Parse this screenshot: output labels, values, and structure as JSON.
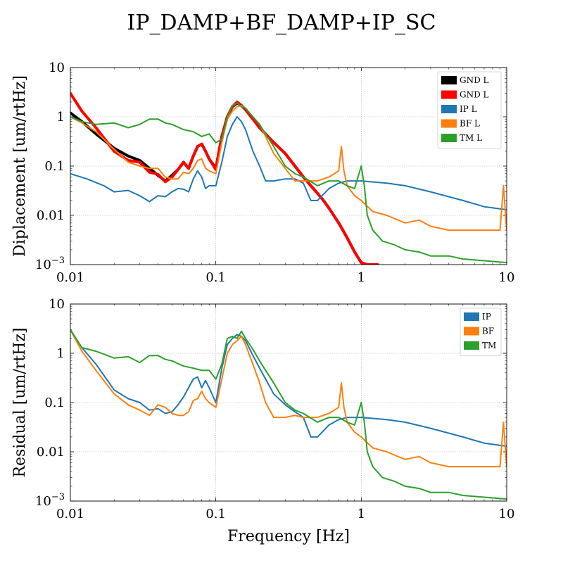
{
  "title": "IP_DAMP+BF_DAMP+IP_SC",
  "colors": {
    "black": "#000000",
    "red": "#ff0000",
    "blue": "#1f77b4",
    "orange": "#ff7f0e",
    "green": "#2ca02c"
  },
  "chart_data": [
    {
      "type": "line",
      "xscale": "log",
      "yscale": "log",
      "xlim": [
        0.01,
        10
      ],
      "ylim": [
        0.001,
        10
      ],
      "xlabel": "",
      "ylabel": "Diplacement [um/rtHz]",
      "x_ticks": [
        "0.01",
        "0.1",
        "1",
        "10"
      ],
      "y_ticks": [
        "10^{-3}",
        "0.01",
        "0.1",
        "1",
        "10"
      ],
      "grid": true,
      "legend_position": "top-right",
      "series": [
        {
          "name": "GND L",
          "color": "#000000",
          "width": 4,
          "x": [
            0.01,
            0.012,
            0.015,
            0.02,
            0.025,
            0.03,
            0.035,
            0.04,
            0.045,
            0.05,
            0.055,
            0.06,
            0.065,
            0.07,
            0.075,
            0.08,
            0.085,
            0.09,
            0.1,
            0.11,
            0.12,
            0.13,
            0.14,
            0.15,
            0.16,
            0.18,
            0.2,
            0.25,
            0.3,
            0.35,
            0.4,
            0.45,
            0.5,
            0.55,
            0.6,
            0.7,
            0.8,
            0.9,
            1.0,
            1.1
          ],
          "y": [
            1.2,
            0.8,
            0.45,
            0.23,
            0.16,
            0.13,
            0.09,
            0.065,
            0.05,
            0.065,
            0.085,
            0.12,
            0.09,
            0.16,
            0.25,
            0.28,
            0.2,
            0.14,
            0.09,
            0.4,
            1.0,
            1.6,
            1.9,
            1.7,
            1.4,
            0.9,
            0.6,
            0.3,
            0.18,
            0.1,
            0.06,
            0.04,
            0.028,
            0.02,
            0.014,
            0.007,
            0.0035,
            0.0018,
            0.0011,
            0.001
          ]
        },
        {
          "name": "GND L",
          "color": "#ff0000",
          "width": 4,
          "x": [
            0.01,
            0.012,
            0.015,
            0.02,
            0.025,
            0.03,
            0.035,
            0.04,
            0.045,
            0.05,
            0.055,
            0.06,
            0.065,
            0.07,
            0.075,
            0.08,
            0.085,
            0.09,
            0.1,
            0.11,
            0.12,
            0.13,
            0.14,
            0.15,
            0.16,
            0.18,
            0.2,
            0.25,
            0.3,
            0.35,
            0.4,
            0.45,
            0.5,
            0.55,
            0.6,
            0.7,
            0.8,
            0.9,
            1.0,
            1.1,
            1.3
          ],
          "y": [
            3.0,
            1.3,
            0.6,
            0.2,
            0.13,
            0.12,
            0.075,
            0.068,
            0.048,
            0.06,
            0.085,
            0.12,
            0.09,
            0.16,
            0.25,
            0.28,
            0.2,
            0.14,
            0.085,
            0.4,
            1.0,
            1.6,
            2.0,
            1.7,
            1.4,
            0.9,
            0.6,
            0.3,
            0.18,
            0.1,
            0.06,
            0.04,
            0.028,
            0.02,
            0.014,
            0.007,
            0.0035,
            0.0018,
            0.0011,
            0.001,
            0.001
          ]
        },
        {
          "name": "IP L",
          "color": "#1f77b4",
          "width": 2,
          "x": [
            0.01,
            0.013,
            0.017,
            0.02,
            0.025,
            0.03,
            0.035,
            0.04,
            0.045,
            0.05,
            0.055,
            0.06,
            0.065,
            0.07,
            0.075,
            0.08,
            0.085,
            0.09,
            0.1,
            0.11,
            0.12,
            0.13,
            0.14,
            0.15,
            0.16,
            0.18,
            0.2,
            0.22,
            0.25,
            0.3,
            0.35,
            0.4,
            0.45,
            0.5,
            0.6,
            0.7,
            0.8,
            1.0,
            1.5,
            2.0,
            3.0,
            5.0,
            7.0,
            10.0
          ],
          "y": [
            0.07,
            0.055,
            0.04,
            0.03,
            0.032,
            0.025,
            0.019,
            0.025,
            0.024,
            0.03,
            0.035,
            0.034,
            0.03,
            0.055,
            0.08,
            0.06,
            0.035,
            0.04,
            0.04,
            0.12,
            0.4,
            0.7,
            1.0,
            0.8,
            0.55,
            0.2,
            0.1,
            0.05,
            0.05,
            0.055,
            0.055,
            0.045,
            0.02,
            0.02,
            0.035,
            0.045,
            0.05,
            0.05,
            0.045,
            0.04,
            0.03,
            0.02,
            0.015,
            0.013
          ]
        },
        {
          "name": "BF L",
          "color": "#ff7f0e",
          "width": 2,
          "x": [
            0.01,
            0.012,
            0.015,
            0.02,
            0.025,
            0.03,
            0.035,
            0.04,
            0.045,
            0.05,
            0.055,
            0.06,
            0.065,
            0.07,
            0.075,
            0.08,
            0.085,
            0.09,
            0.1,
            0.11,
            0.12,
            0.13,
            0.14,
            0.15,
            0.16,
            0.18,
            0.2,
            0.22,
            0.25,
            0.3,
            0.35,
            0.4,
            0.5,
            0.6,
            0.7,
            0.73,
            0.76,
            0.8,
            0.9,
            1.0,
            1.2,
            1.5,
            2.0,
            2.5,
            3.0,
            4.0,
            5.0,
            7.0,
            9.0,
            9.5,
            10.0
          ],
          "y": [
            1.0,
            0.75,
            0.5,
            0.22,
            0.12,
            0.1,
            0.09,
            0.09,
            0.06,
            0.055,
            0.055,
            0.075,
            0.07,
            0.09,
            0.13,
            0.14,
            0.09,
            0.08,
            0.07,
            0.3,
            0.9,
            1.3,
            1.6,
            1.7,
            1.5,
            1.0,
            0.7,
            0.4,
            0.18,
            0.09,
            0.05,
            0.05,
            0.05,
            0.06,
            0.08,
            0.25,
            0.08,
            0.04,
            0.025,
            0.02,
            0.012,
            0.01,
            0.007,
            0.008,
            0.006,
            0.005,
            0.005,
            0.005,
            0.005,
            0.04,
            0.005
          ]
        },
        {
          "name": "TM L",
          "color": "#2ca02c",
          "width": 2,
          "x": [
            0.01,
            0.012,
            0.015,
            0.02,
            0.025,
            0.03,
            0.035,
            0.04,
            0.045,
            0.05,
            0.06,
            0.07,
            0.08,
            0.09,
            0.1,
            0.11,
            0.12,
            0.13,
            0.14,
            0.15,
            0.16,
            0.18,
            0.2,
            0.22,
            0.25,
            0.3,
            0.35,
            0.4,
            0.5,
            0.6,
            0.7,
            0.8,
            0.9,
            1.0,
            1.05,
            1.1,
            1.2,
            1.4,
            1.7,
            2.0,
            2.5,
            3.0,
            4.0,
            5.0,
            7.0,
            10.0
          ],
          "y": [
            1.0,
            0.8,
            0.7,
            0.75,
            0.6,
            0.7,
            0.9,
            0.9,
            0.75,
            0.7,
            0.55,
            0.5,
            0.4,
            0.45,
            0.3,
            0.35,
            1.0,
            1.7,
            1.9,
            1.6,
            1.5,
            1.0,
            0.7,
            0.45,
            0.25,
            0.1,
            0.07,
            0.06,
            0.04,
            0.05,
            0.05,
            0.04,
            0.035,
            0.1,
            0.04,
            0.01,
            0.005,
            0.003,
            0.0025,
            0.002,
            0.0018,
            0.0015,
            0.0015,
            0.0013,
            0.0012,
            0.0011
          ]
        }
      ]
    },
    {
      "type": "line",
      "xscale": "log",
      "yscale": "log",
      "xlim": [
        0.01,
        10
      ],
      "ylim": [
        0.001,
        10
      ],
      "xlabel": "Frequency [Hz]",
      "ylabel": "Residual [um/rtHz]",
      "x_ticks": [
        "0.01",
        "0.1",
        "1",
        "10"
      ],
      "y_ticks": [
        "10^{-3}",
        "0.01",
        "0.1",
        "1",
        "10"
      ],
      "grid": true,
      "legend_position": "top-right",
      "series": [
        {
          "name": "IP",
          "color": "#1f77b4",
          "width": 2,
          "x": [
            0.01,
            0.012,
            0.015,
            0.02,
            0.025,
            0.03,
            0.035,
            0.04,
            0.045,
            0.05,
            0.055,
            0.06,
            0.065,
            0.07,
            0.075,
            0.08,
            0.085,
            0.09,
            0.1,
            0.11,
            0.12,
            0.13,
            0.14,
            0.15,
            0.16,
            0.18,
            0.2,
            0.22,
            0.25,
            0.3,
            0.35,
            0.4,
            0.45,
            0.5,
            0.6,
            0.7,
            0.8,
            1.0,
            1.5,
            2.0,
            3.0,
            5.0,
            7.0,
            10.0
          ],
          "y": [
            3.0,
            1.3,
            0.6,
            0.18,
            0.12,
            0.1,
            0.07,
            0.075,
            0.06,
            0.065,
            0.09,
            0.13,
            0.2,
            0.3,
            0.33,
            0.2,
            0.28,
            0.2,
            0.1,
            0.5,
            1.5,
            2.0,
            2.4,
            2.2,
            1.8,
            0.9,
            0.5,
            0.3,
            0.15,
            0.09,
            0.065,
            0.05,
            0.02,
            0.02,
            0.035,
            0.045,
            0.05,
            0.05,
            0.045,
            0.04,
            0.03,
            0.02,
            0.015,
            0.013
          ]
        },
        {
          "name": "BF",
          "color": "#ff7f0e",
          "width": 2,
          "x": [
            0.01,
            0.012,
            0.015,
            0.02,
            0.025,
            0.03,
            0.035,
            0.04,
            0.045,
            0.05,
            0.055,
            0.06,
            0.065,
            0.07,
            0.075,
            0.08,
            0.085,
            0.09,
            0.1,
            0.11,
            0.12,
            0.13,
            0.14,
            0.15,
            0.16,
            0.18,
            0.2,
            0.22,
            0.25,
            0.3,
            0.35,
            0.4,
            0.5,
            0.6,
            0.7,
            0.73,
            0.76,
            0.8,
            0.9,
            1.0,
            1.2,
            1.5,
            2.0,
            2.5,
            3.0,
            4.0,
            5.0,
            7.0,
            9.0,
            9.5,
            10.0
          ],
          "y": [
            3.0,
            1.1,
            0.45,
            0.15,
            0.09,
            0.07,
            0.055,
            0.09,
            0.08,
            0.06,
            0.055,
            0.055,
            0.065,
            0.11,
            0.12,
            0.17,
            0.12,
            0.1,
            0.08,
            0.3,
            1.0,
            1.5,
            1.8,
            2.2,
            1.5,
            0.6,
            0.25,
            0.1,
            0.05,
            0.05,
            0.055,
            0.05,
            0.05,
            0.06,
            0.08,
            0.25,
            0.08,
            0.04,
            0.025,
            0.02,
            0.012,
            0.01,
            0.007,
            0.008,
            0.006,
            0.005,
            0.005,
            0.005,
            0.005,
            0.04,
            0.005
          ]
        },
        {
          "name": "TM",
          "color": "#2ca02c",
          "width": 2,
          "x": [
            0.01,
            0.012,
            0.015,
            0.02,
            0.025,
            0.03,
            0.035,
            0.04,
            0.045,
            0.05,
            0.06,
            0.07,
            0.08,
            0.09,
            0.1,
            0.11,
            0.12,
            0.13,
            0.14,
            0.15,
            0.16,
            0.18,
            0.2,
            0.22,
            0.25,
            0.3,
            0.35,
            0.4,
            0.5,
            0.6,
            0.7,
            0.8,
            0.9,
            1.0,
            1.05,
            1.1,
            1.2,
            1.4,
            1.7,
            2.0,
            2.5,
            3.0,
            4.0,
            5.0,
            7.0,
            10.0
          ],
          "y": [
            3.0,
            1.3,
            1.1,
            0.8,
            0.85,
            0.65,
            0.9,
            0.9,
            0.75,
            0.7,
            0.55,
            0.5,
            0.45,
            0.45,
            0.3,
            0.6,
            2.0,
            2.2,
            2.0,
            2.8,
            2.0,
            1.2,
            0.7,
            0.45,
            0.25,
            0.1,
            0.07,
            0.06,
            0.04,
            0.05,
            0.05,
            0.04,
            0.035,
            0.1,
            0.04,
            0.01,
            0.005,
            0.003,
            0.0025,
            0.002,
            0.0018,
            0.0015,
            0.0015,
            0.0013,
            0.0012,
            0.0011
          ]
        }
      ]
    }
  ]
}
